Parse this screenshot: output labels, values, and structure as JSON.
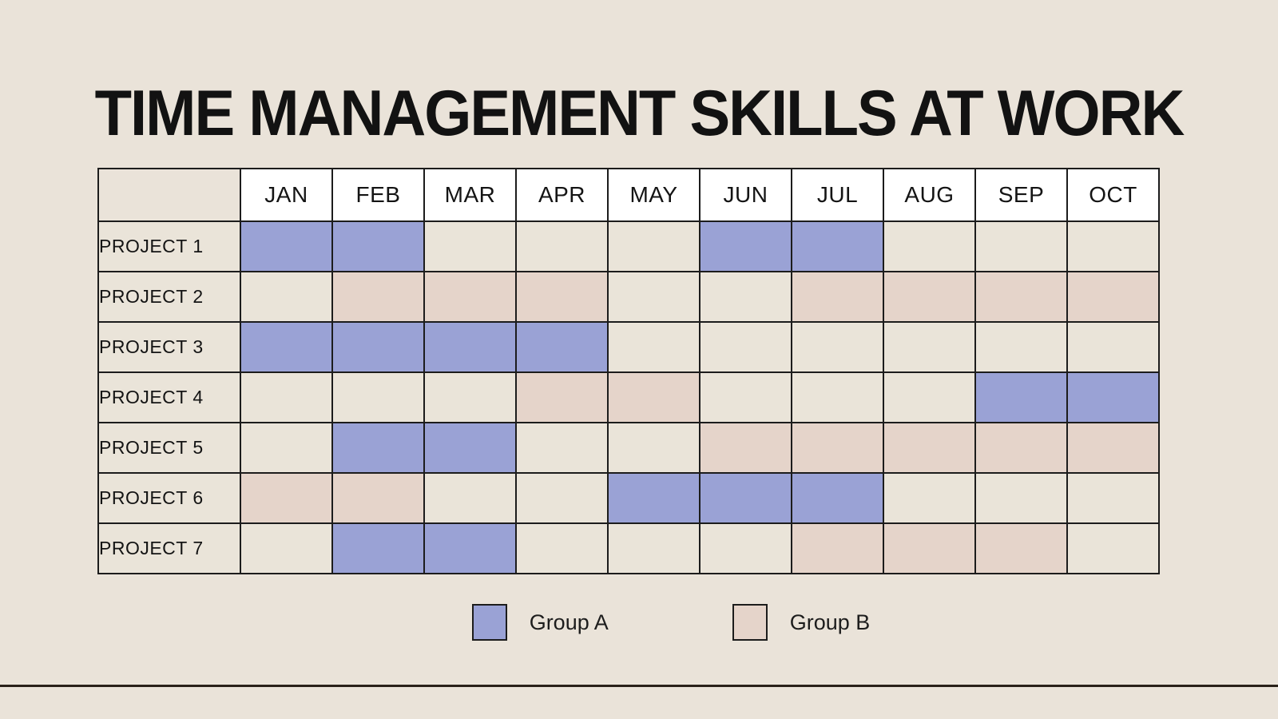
{
  "page": {
    "title": "TIME MANAGEMENT SKILLS AT WORK"
  },
  "colors": {
    "background": "#EAE3D9",
    "cell_empty": "#EAE4D9",
    "header_bg": "#FFFFFF",
    "border": "#1C1C1C",
    "group_a": "#9AA2D5",
    "group_b": "#E5D4CA",
    "bottom_rule": "#2A2119"
  },
  "chart_data": {
    "type": "table",
    "title": "TIME MANAGEMENT SKILLS AT WORK",
    "columns": [
      "JAN",
      "FEB",
      "MAR",
      "APR",
      "MAY",
      "JUN",
      "JUL",
      "AUG",
      "SEP",
      "OCT"
    ],
    "rows": [
      {
        "label": "PROJECT 1",
        "cells": [
          "A",
          "A",
          "",
          "",
          "",
          "A",
          "A",
          "",
          "",
          ""
        ]
      },
      {
        "label": "PROJECT 2",
        "cells": [
          "",
          "B",
          "B",
          "B",
          "",
          "",
          "B",
          "B",
          "B",
          "B"
        ]
      },
      {
        "label": "PROJECT 3",
        "cells": [
          "A",
          "A",
          "A",
          "A",
          "",
          "",
          "",
          "",
          "",
          ""
        ]
      },
      {
        "label": "PROJECT 4",
        "cells": [
          "",
          "",
          "",
          "B",
          "B",
          "",
          "",
          "",
          "A",
          "A"
        ]
      },
      {
        "label": "PROJECT 5",
        "cells": [
          "",
          "A",
          "A",
          "",
          "",
          "B",
          "B",
          "B",
          "B",
          "B"
        ]
      },
      {
        "label": "PROJECT 6",
        "cells": [
          "B",
          "B",
          "",
          "",
          "A",
          "A",
          "A",
          "",
          "",
          ""
        ]
      },
      {
        "label": "PROJECT 7",
        "cells": [
          "",
          "A",
          "A",
          "",
          "",
          "",
          "B",
          "B",
          "B",
          ""
        ]
      }
    ],
    "legend": [
      {
        "label": "Group A",
        "color": "#9AA2D5"
      },
      {
        "label": "Group B",
        "color": "#E5D4CA"
      }
    ],
    "legend_position": "bottom",
    "grid": true
  }
}
